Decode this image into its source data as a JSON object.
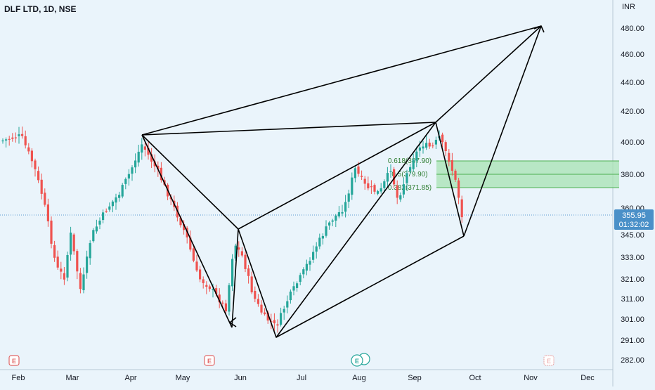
{
  "header": {
    "symbol_title": "DLF LTD, 1D, NSE",
    "currency": "INR"
  },
  "price_axis": {
    "ticks": [
      {
        "label": "480.00",
        "value": 480
      },
      {
        "label": "460.00",
        "value": 460
      },
      {
        "label": "440.00",
        "value": 440
      },
      {
        "label": "420.00",
        "value": 420
      },
      {
        "label": "400.00",
        "value": 400
      },
      {
        "label": "380.00",
        "value": 380
      },
      {
        "label": "360.00",
        "value": 360
      },
      {
        "label": "345.00",
        "value": 345
      },
      {
        "label": "333.00",
        "value": 333
      },
      {
        "label": "321.00",
        "value": 321
      },
      {
        "label": "311.00",
        "value": 311
      },
      {
        "label": "301.00",
        "value": 301
      },
      {
        "label": "291.00",
        "value": 291
      },
      {
        "label": "282.00",
        "value": 282
      }
    ],
    "current_price": "355.95",
    "countdown": "01:32:02",
    "current_price_color": "#4a90c8"
  },
  "time_axis": {
    "labels": [
      "Feb",
      "Mar",
      "Apr",
      "May",
      "Jun",
      "Jul",
      "Aug",
      "Sep",
      "Oct",
      "Nov",
      "Dec"
    ]
  },
  "fib_zone": {
    "levels": [
      {
        "label": "0.618(387.90)",
        "price": 387.9
      },
      {
        "label": "0.5(379.90)",
        "price": 379.9
      },
      {
        "label": "0.382(371.85)",
        "price": 371.85
      }
    ],
    "color": "#4caf50"
  },
  "earnings_markers": [
    {
      "icon": "earnings-icon",
      "label": "E",
      "month": "Feb",
      "color": "#e06666",
      "past": true
    },
    {
      "icon": "earnings-icon",
      "label": "E",
      "month": "May",
      "color": "#e06666",
      "past": true
    },
    {
      "icon": "earnings-icon",
      "label": "E",
      "month": "Aug",
      "color": "#26a69a",
      "past": true
    },
    {
      "icon": "earnings-icon",
      "label": "E",
      "month": "Nov",
      "color": "#e06666",
      "past": false
    }
  ],
  "colors": {
    "up": "#26a69a",
    "down": "#ef5350",
    "background": "#eaf4fb",
    "drawing": "#000000"
  }
}
